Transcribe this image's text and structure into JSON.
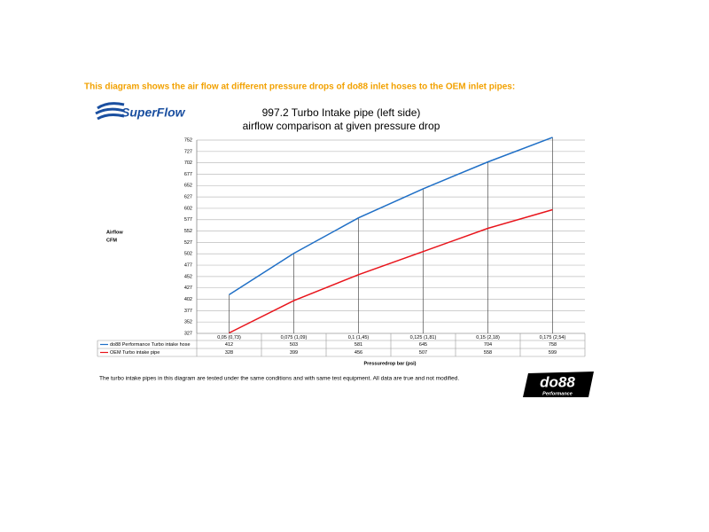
{
  "page": {
    "heading": "This diagram shows the air flow at different pressure drops of do88 inlet hoses to the OEM inlet pipes:",
    "footer_note": "The turbo intake pipes in this diagram are tested under the same conditions and with same test equipment. All data are true and not modified.",
    "logo_left": "SuperFlow",
    "logo_right": "do88",
    "logo_right_sub": "Performance"
  },
  "chart_data": {
    "type": "line",
    "title": "997.2 Turbo Intake pipe (left side)",
    "subtitle": "airflow comparison at given pressure drop",
    "ylabel": "Airflow",
    "yunit": "CFM",
    "xlabel": "Pressuredrop bar (psi)",
    "categories": [
      "0,05 (0,73)",
      "0,075 (1,09)",
      "0,1 (1,45)",
      "0,125 (1,81)",
      "0,15 (2,18)",
      "0,175 (2,54)"
    ],
    "series": [
      {
        "name": "do88 Performance Turbo intake hose",
        "color": "#1f6fc6",
        "values": [
          412,
          503,
          581,
          645,
          704,
          758
        ]
      },
      {
        "name": "OEM Turbo intake pipe",
        "color": "#e8141b",
        "values": [
          328,
          399,
          456,
          507,
          558,
          599
        ]
      }
    ],
    "ylim": [
      327,
      752
    ],
    "yticks": [
      327,
      352,
      377,
      402,
      427,
      452,
      477,
      502,
      527,
      552,
      577,
      602,
      627,
      652,
      677,
      702,
      727,
      752
    ],
    "grid": true
  }
}
